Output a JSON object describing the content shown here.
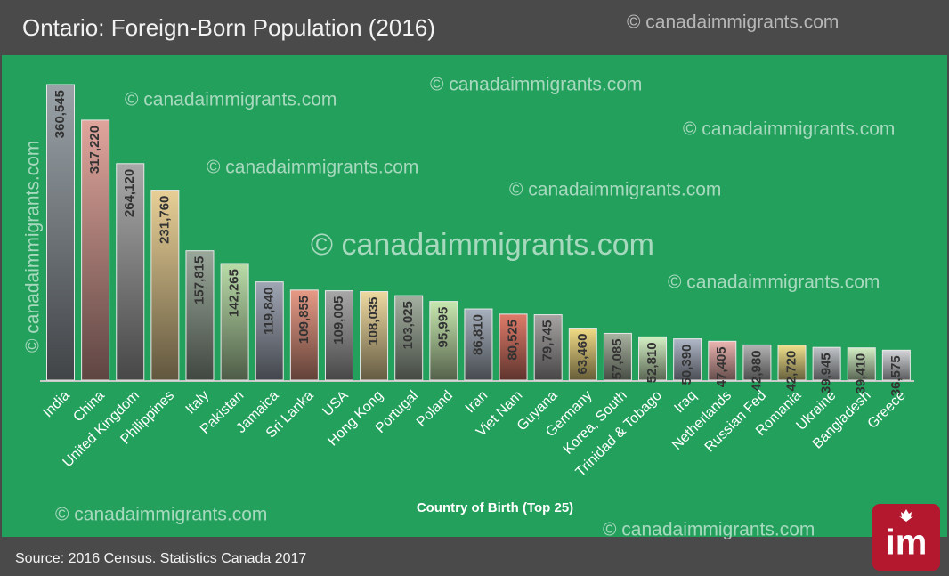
{
  "chart_data": {
    "type": "bar",
    "title": "Ontario: Foreign-Born Population (2016)",
    "x_label": "Country of Birth (Top 25)",
    "source": "Source: 2016 Census. Statistics Canada 2017",
    "watermark": "© canadaimmigrants.com",
    "logo": "im",
    "categories": [
      "India",
      "China",
      "United Kingdom",
      "Philippines",
      "Italy",
      "Pakistan",
      "Jamaica",
      "Sri Lanka",
      "USA",
      "Hong Kong",
      "Portugal",
      "Poland",
      "Iran",
      "Viet Nam",
      "Guyana",
      "Germany",
      "Korea, South",
      "Trinidad & Tobago",
      "Iraq",
      "Netherlands",
      "Russian Fed",
      "Romania",
      "Ukraine",
      "Bangladesh",
      "Greece"
    ],
    "values": [
      360545,
      317220,
      264120,
      231760,
      157815,
      142265,
      119840,
      109855,
      109005,
      108035,
      103025,
      95995,
      86810,
      80525,
      79745,
      63460,
      57085,
      52810,
      50390,
      47405,
      42980,
      42720,
      39945,
      39410,
      36575
    ],
    "value_labels": [
      "360,545",
      "317,220",
      "264,120",
      "231,760",
      "157,815",
      "142,265",
      "119,840",
      "109,855",
      "109,005",
      "108,035",
      "103,025",
      "95,995",
      "86,810",
      "80,525",
      "79,745",
      "63,460",
      "57,085",
      "52,810",
      "50,390",
      "47,405",
      "42,980",
      "42,720",
      "39,945",
      "39,410",
      "36,575"
    ],
    "colors": [
      "#9aa3a8",
      "#e0a59c",
      "#a9a9a9",
      "#e8cf96",
      "#9aa89a",
      "#b9dca8",
      "#9fa6b4",
      "#e79a86",
      "#a8a8a8",
      "#eed9a0",
      "#a4b0a0",
      "#c8e8b0",
      "#a7b0bd",
      "#e07b6a",
      "#a8a4a4",
      "#f2dc86",
      "#aab4a2",
      "#d4f0c4",
      "#b0b8c8",
      "#ecb4b0",
      "#b4b4b4",
      "#f0e08c",
      "#c0c4c8",
      "#d2eec4",
      "#d4d6da"
    ]
  }
}
